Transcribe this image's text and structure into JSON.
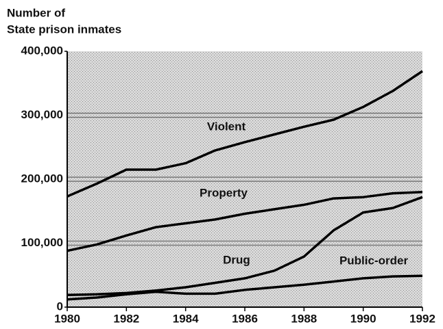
{
  "chart_data": {
    "type": "line",
    "ylabel": [
      "Number of",
      "State prison inmates"
    ],
    "x": [
      1980,
      1981,
      1982,
      1983,
      1984,
      1985,
      1986,
      1987,
      1988,
      1989,
      1990,
      1991,
      1992
    ],
    "series": [
      {
        "name": "Violent",
        "color": "#000000",
        "values": [
          173000,
          193000,
          215000,
          215000,
          225000,
          245000,
          258000,
          270000,
          282000,
          293000,
          313000,
          338000,
          369000
        ]
      },
      {
        "name": "Property",
        "color": "#000000",
        "values": [
          88000,
          98000,
          112000,
          125000,
          131000,
          137000,
          146000,
          153000,
          160000,
          170000,
          172000,
          178000,
          180000
        ]
      },
      {
        "name": "Drug",
        "color": "#000000",
        "values": [
          19000,
          20000,
          22000,
          26000,
          31000,
          38000,
          45000,
          57000,
          79000,
          120000,
          148000,
          155000,
          172000
        ]
      },
      {
        "name": "Public-order",
        "color": "#000000",
        "values": [
          12000,
          15000,
          20000,
          24000,
          21000,
          21000,
          27000,
          31000,
          35000,
          40000,
          45000,
          48000,
          49000
        ]
      }
    ],
    "xlim": [
      1980,
      1992
    ],
    "xticks": [
      1980,
      1982,
      1984,
      1986,
      1988,
      1990,
      1992
    ],
    "ylim": [
      0,
      400000
    ],
    "yticks": [
      0,
      {
        "value": 100000,
        "label": "100,000"
      },
      {
        "value": 200000,
        "label": "200,000"
      },
      {
        "value": 300000,
        "label": "300,000"
      },
      {
        "value": 400000,
        "label": "400,000"
      }
    ],
    "grid": true
  }
}
